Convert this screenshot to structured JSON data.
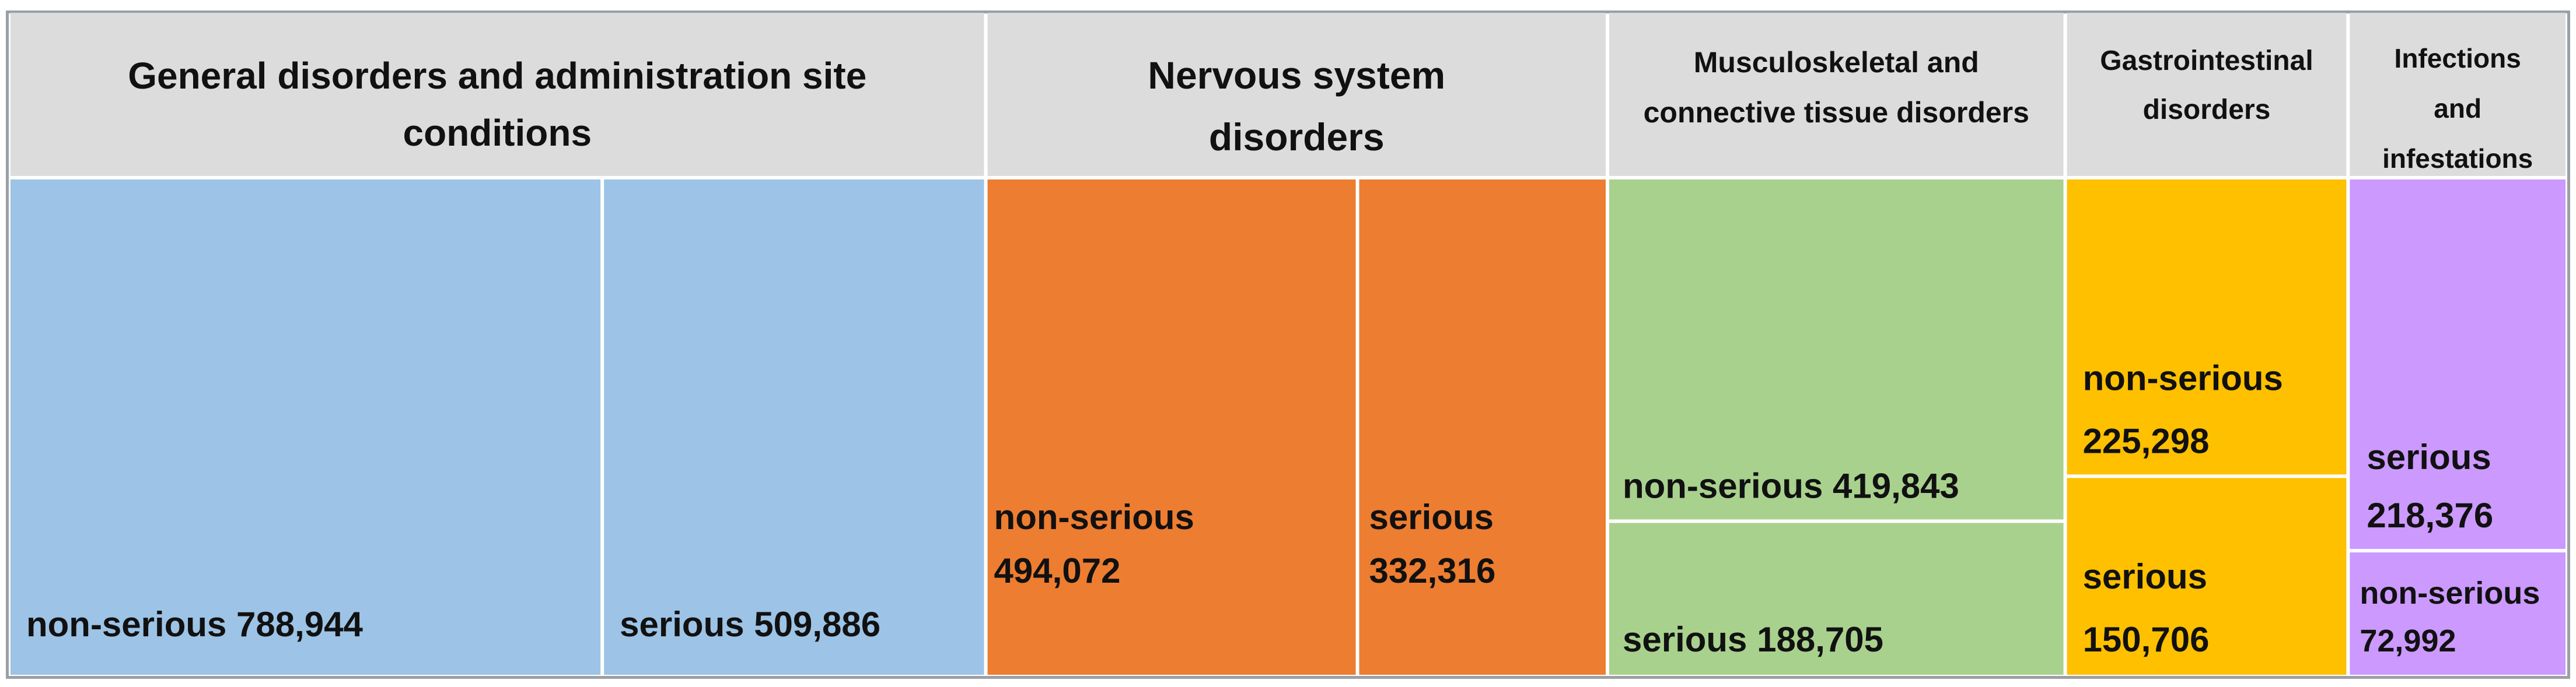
{
  "chart_data": {
    "type": "treemap",
    "colors": {
      "header_bg": "#dcdcdc",
      "divider": "#ffffff",
      "General disorders and administration site conditions": "#9dc3e6",
      "Nervous system disorders": "#ed7d31",
      "Musculoskeletal and connective tissue disorders": "#a9d18e",
      "Gastrointestinal disorders": "#ffc000",
      "Infections and infestations": "#cc99ff"
    },
    "groups": [
      {
        "name": "General disorders and administration site conditions",
        "label_lines": [
          "General disorders and administration site",
          "conditions"
        ],
        "leaves": [
          {
            "name": "non-serious",
            "value": 788944,
            "label_lines": [
              "non-serious 788,944"
            ]
          },
          {
            "name": "serious",
            "value": 509886,
            "label_lines": [
              "serious 509,886"
            ]
          }
        ]
      },
      {
        "name": "Nervous system disorders",
        "label_lines": [
          "Nervous system",
          "disorders"
        ],
        "leaves": [
          {
            "name": "non-serious",
            "value": 494072,
            "label_lines": [
              "non-serious",
              "494,072"
            ]
          },
          {
            "name": "serious",
            "value": 332316,
            "label_lines": [
              "serious",
              "332,316"
            ]
          }
        ]
      },
      {
        "name": "Musculoskeletal and connective tissue disorders",
        "label_lines": [
          "Musculoskeletal and",
          "connective tissue disorders"
        ],
        "leaves": [
          {
            "name": "non-serious",
            "value": 419843,
            "label_lines": [
              "non-serious 419,843"
            ]
          },
          {
            "name": "serious",
            "value": 188705,
            "label_lines": [
              "serious 188,705"
            ]
          }
        ]
      },
      {
        "name": "Gastrointestinal disorders",
        "label_lines": [
          "Gastrointestinal",
          "disorders"
        ],
        "leaves": [
          {
            "name": "non-serious",
            "value": 225298,
            "label_lines": [
              "non-serious",
              "225,298"
            ]
          },
          {
            "name": "serious",
            "value": 150706,
            "label_lines": [
              "serious",
              "150,706"
            ]
          }
        ]
      },
      {
        "name": "Infections and infestations",
        "label_lines": [
          "Infections",
          "and",
          "infestations"
        ],
        "leaves": [
          {
            "name": "serious",
            "value": 218376,
            "label_lines": [
              "serious",
              "218,376"
            ]
          },
          {
            "name": "non-serious",
            "value": 72992,
            "label_lines": [
              "non-serious",
              "72,992"
            ]
          }
        ]
      }
    ]
  }
}
